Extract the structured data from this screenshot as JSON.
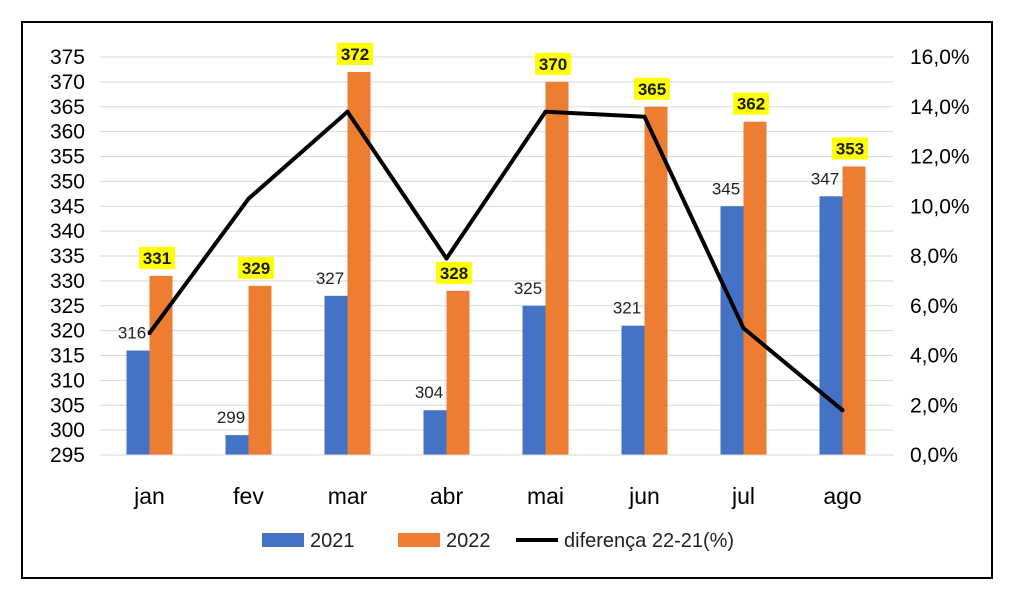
{
  "chart_data": {
    "type": "bar",
    "title": "",
    "categories": [
      "jan",
      "fev",
      "mar",
      "abr",
      "mai",
      "jun",
      "jul",
      "ago"
    ],
    "series": [
      {
        "name": "2021",
        "kind": "bar",
        "axis": "left",
        "color": "#4472C4",
        "values": [
          316,
          299,
          327,
          304,
          325,
          321,
          345,
          347
        ]
      },
      {
        "name": "2022",
        "kind": "bar",
        "axis": "left",
        "color": "#ED7D31",
        "values": [
          331,
          329,
          372,
          328,
          370,
          365,
          362,
          353
        ]
      },
      {
        "name": "diferença 22-21(%)",
        "kind": "line",
        "axis": "right",
        "color": "#000000",
        "values": [
          4.9,
          10.3,
          13.8,
          7.9,
          13.8,
          13.6,
          5.1,
          1.8
        ]
      }
    ],
    "left_axis": {
      "min": 295,
      "max": 375,
      "step": 5,
      "ticks": [
        "375",
        "370",
        "365",
        "360",
        "355",
        "350",
        "345",
        "340",
        "335",
        "330",
        "325",
        "320",
        "315",
        "310",
        "305",
        "300",
        "295"
      ]
    },
    "right_axis": {
      "min": 0,
      "max": 16,
      "step": 2,
      "ticks": [
        "16,0%",
        "14,0%",
        "12,0%",
        "10,0%",
        "8,0%",
        "6,0%",
        "4,0%",
        "2,0%",
        "0,0%"
      ]
    },
    "grid": true,
    "legend_position": "bottom",
    "highlight_label_color": "#FFFF00"
  }
}
